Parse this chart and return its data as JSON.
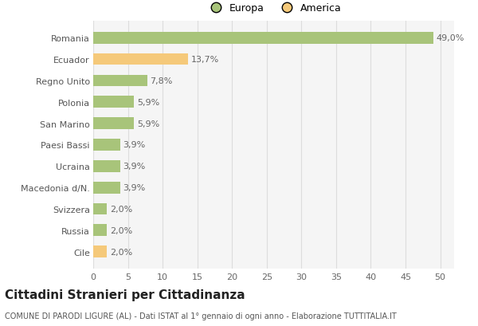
{
  "categories": [
    "Cile",
    "Russia",
    "Svizzera",
    "Macedonia d/N.",
    "Ucraina",
    "Paesi Bassi",
    "San Marino",
    "Polonia",
    "Regno Unito",
    "Ecuador",
    "Romania"
  ],
  "values": [
    2.0,
    2.0,
    2.0,
    3.9,
    3.9,
    3.9,
    5.9,
    5.9,
    7.8,
    13.7,
    49.0
  ],
  "colors": [
    "#f5c97a",
    "#a8c47a",
    "#a8c47a",
    "#a8c47a",
    "#a8c47a",
    "#a8c47a",
    "#a8c47a",
    "#a8c47a",
    "#a8c47a",
    "#f5c97a",
    "#a8c47a"
  ],
  "labels": [
    "2,0%",
    "2,0%",
    "2,0%",
    "3,9%",
    "3,9%",
    "3,9%",
    "5,9%",
    "5,9%",
    "7,8%",
    "13,7%",
    "49,0%"
  ],
  "legend_europa_color": "#a8c47a",
  "legend_america_color": "#f5c97a",
  "title": "Cittadini Stranieri per Cittadinanza",
  "subtitle": "COMUNE DI PARODI LIGURE (AL) - Dati ISTAT al 1° gennaio di ogni anno - Elaborazione TUTTITALIA.IT",
  "xlabel_ticks": [
    0,
    5,
    10,
    15,
    20,
    25,
    30,
    35,
    40,
    45,
    50
  ],
  "xlim": [
    0,
    52
  ],
  "background_color": "#ffffff",
  "bar_background": "#f5f5f5",
  "grid_color": "#dddddd",
  "label_fontsize": 8,
  "title_fontsize": 11,
  "subtitle_fontsize": 7
}
